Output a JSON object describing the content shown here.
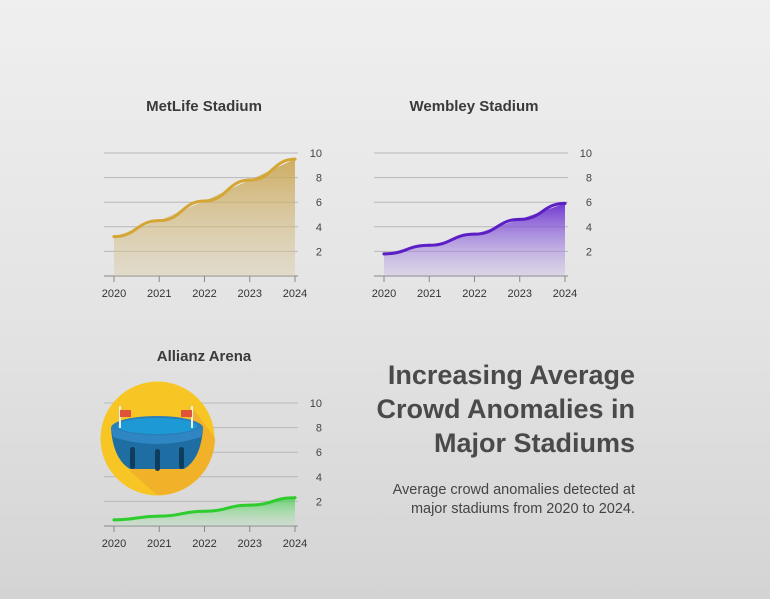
{
  "main_title": "Increasing Average Crowd Anomalies in Major Stadiums",
  "subtitle": "Average crowd anomalies detected at major stadiums from 2020 to 2024.",
  "icons": {
    "stadium": "stadium-icon"
  },
  "chart_data": [
    {
      "type": "area",
      "title": "MetLife Stadium",
      "x": [
        "2020",
        "2021",
        "2022",
        "2023",
        "2024"
      ],
      "values": [
        3.2,
        4.5,
        6.1,
        7.8,
        9.5
      ],
      "ylim": [
        0,
        10
      ],
      "yticks": [
        2,
        4,
        6,
        8,
        10
      ],
      "color": "#d4a634",
      "fill": "#c9a65a",
      "grid": true
    },
    {
      "type": "area",
      "title": "Wembley Stadium",
      "x": [
        "2020",
        "2021",
        "2022",
        "2023",
        "2024"
      ],
      "values": [
        1.8,
        2.5,
        3.4,
        4.6,
        5.9
      ],
      "ylim": [
        0,
        10
      ],
      "yticks": [
        2,
        4,
        6,
        8,
        10
      ],
      "color": "#5b1fc4",
      "fill": "#7a45d8",
      "grid": true
    },
    {
      "type": "area",
      "title": "Allianz Arena",
      "x": [
        "2020",
        "2021",
        "2022",
        "2023",
        "2024"
      ],
      "values": [
        0.5,
        0.8,
        1.2,
        1.7,
        2.3
      ],
      "ylim": [
        0,
        10
      ],
      "yticks": [
        2,
        4,
        6,
        8,
        10
      ],
      "color": "#2ecc2e",
      "fill": "#3fcf4a",
      "grid": true
    }
  ]
}
